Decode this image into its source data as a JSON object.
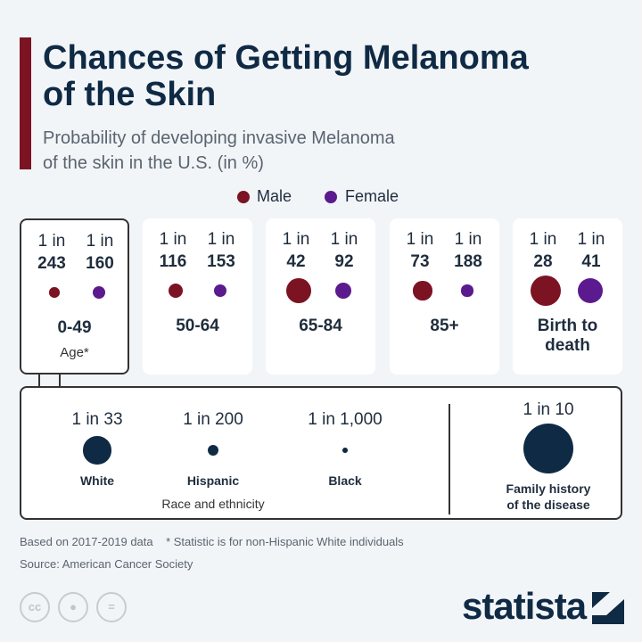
{
  "title_lines": [
    "Chances of Getting Melanoma",
    "of the Skin"
  ],
  "subtitle_lines": [
    "Probability of developing invasive Melanoma",
    "of the skin in the U.S. (in %)"
  ],
  "colors": {
    "male": "#7b1322",
    "female": "#5b1a8e",
    "race": "#0f2a44",
    "accent_bar": "#7b1322"
  },
  "chart_data": {
    "type": "bubble",
    "legend": {
      "placement": "top-center",
      "entries": [
        "Male",
        "Female"
      ]
    },
    "age_groups": [
      {
        "label": "0-49",
        "male": "1 in",
        "male_value": "243",
        "female": "1 in",
        "female_value": "160",
        "note": "Age*"
      },
      {
        "label": "50-64",
        "male": "1 in",
        "male_value": "116",
        "female": "1 in",
        "female_value": "153"
      },
      {
        "label": "65-84",
        "male": "1 in",
        "male_value": "42",
        "female": "1 in",
        "female_value": "92"
      },
      {
        "label": "85+",
        "male": "1 in",
        "male_value": "73",
        "female": "1 in",
        "female_value": "188"
      },
      {
        "label_lines": [
          "Birth to",
          "death"
        ],
        "male": "1 in",
        "male_value": "28",
        "female": "1 in",
        "female_value": "41"
      }
    ],
    "race": {
      "group_label": "Race and ethnicity",
      "items": [
        {
          "label": "White",
          "value_text": "1 in 33",
          "value": 33
        },
        {
          "label": "Hispanic",
          "value_text": "1 in 200",
          "value": 200
        },
        {
          "label": "Black",
          "value_text": "1 in 1,000",
          "value": 1000
        }
      ]
    },
    "family": {
      "label_lines": [
        "Family history",
        "of the disease"
      ],
      "value_text": "1 in 10",
      "value": 10
    }
  },
  "footer": {
    "note": "Based on 2017-2019 data    * Statistic is for non-Hispanic White individuals",
    "source": "Source: American Cancer Society"
  },
  "license_icons": [
    "cc-icon",
    "attribution-icon",
    "no-derivatives-icon"
  ],
  "logo": "statista"
}
